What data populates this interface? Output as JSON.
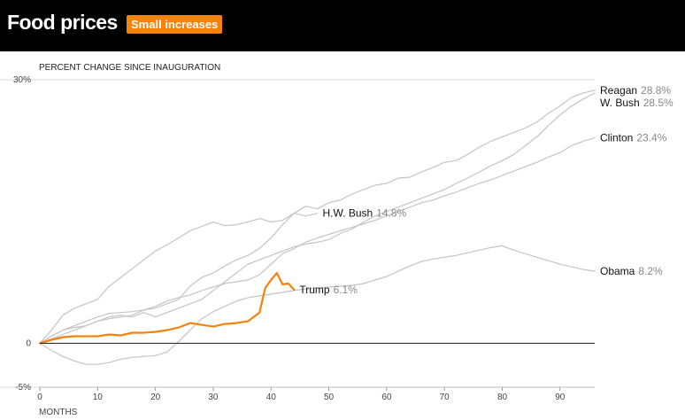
{
  "header": {
    "title": "Food prices",
    "badge": "Small increases"
  },
  "colors": {
    "header_bg": "#000000",
    "accent": "#f5820b",
    "past_series": "#c4c4c4",
    "grid": "#dddddd"
  },
  "chart_data": {
    "type": "line",
    "ylabel": "PERCENT CHANGE SINCE INAUGURATION",
    "xlabel": "MONTHS",
    "xlim": [
      0,
      96
    ],
    "ylim": [
      -5,
      30
    ],
    "xticks": [
      0,
      10,
      20,
      30,
      40,
      50,
      60,
      70,
      80,
      90
    ],
    "yticks": [
      {
        "value": 30,
        "label": "30%"
      },
      {
        "value": 0,
        "label": "0"
      },
      {
        "value": -5,
        "label": "-5%"
      }
    ],
    "series": [
      {
        "name": "Reagan",
        "label_value": "28.8%",
        "highlight": false,
        "x": [
          0,
          2,
          4,
          6,
          8,
          10,
          12,
          14,
          16,
          18,
          20,
          22,
          24,
          26,
          28,
          30,
          32,
          34,
          36,
          38,
          40,
          42,
          44,
          46,
          48,
          50,
          52,
          54,
          56,
          58,
          60,
          62,
          64,
          66,
          68,
          70,
          72,
          74,
          76,
          78,
          80,
          82,
          84,
          86,
          88,
          90,
          92,
          94,
          96
        ],
        "y": [
          0,
          1.5,
          3.2,
          4.0,
          4.5,
          5.0,
          6.5,
          7.5,
          8.5,
          9.5,
          10.5,
          11.2,
          12.0,
          12.8,
          13.3,
          13.8,
          13.4,
          13.5,
          13.8,
          14.2,
          13.8,
          14.0,
          14.8,
          15.6,
          15.3,
          16.0,
          16.3,
          17.0,
          17.5,
          18.0,
          18.2,
          18.8,
          18.9,
          19.5,
          20.0,
          20.6,
          20.8,
          21.5,
          22.3,
          23.0,
          23.5,
          24.0,
          24.5,
          25.2,
          26.2,
          27.0,
          28.0,
          28.5,
          28.8
        ]
      },
      {
        "name": "W. Bush",
        "label_value": "28.5%",
        "highlight": false,
        "x": [
          0,
          2,
          4,
          6,
          8,
          10,
          12,
          14,
          16,
          18,
          20,
          22,
          24,
          26,
          28,
          30,
          32,
          34,
          36,
          38,
          40,
          42,
          44,
          46,
          48,
          50,
          52,
          54,
          56,
          58,
          60,
          62,
          64,
          66,
          68,
          70,
          72,
          74,
          76,
          78,
          80,
          82,
          84,
          86,
          88,
          90,
          92,
          94,
          96
        ],
        "y": [
          0,
          0.5,
          1.0,
          1.5,
          2.0,
          2.5,
          3.0,
          3.2,
          3.0,
          3.5,
          3.0,
          3.5,
          4.0,
          4.5,
          5.0,
          6.0,
          7.0,
          8.0,
          9.0,
          9.5,
          10.0,
          10.5,
          11.0,
          11.3,
          11.5,
          11.8,
          12.5,
          13.0,
          13.8,
          14.5,
          15.0,
          15.5,
          16.0,
          16.5,
          17.0,
          17.5,
          18.2,
          18.8,
          19.5,
          20.2,
          20.8,
          21.5,
          22.5,
          23.5,
          24.8,
          26.0,
          27.0,
          27.8,
          28.5
        ]
      },
      {
        "name": "Clinton",
        "label_value": "23.4%",
        "highlight": false,
        "x": [
          0,
          2,
          4,
          6,
          8,
          10,
          12,
          14,
          16,
          18,
          20,
          22,
          24,
          26,
          28,
          30,
          32,
          34,
          36,
          38,
          40,
          42,
          44,
          46,
          48,
          50,
          52,
          54,
          56,
          58,
          60,
          62,
          64,
          66,
          68,
          70,
          72,
          74,
          76,
          78,
          80,
          82,
          84,
          86,
          88,
          90,
          92,
          94,
          96
        ],
        "y": [
          0,
          0.8,
          1.5,
          1.8,
          2.0,
          2.5,
          2.8,
          3.0,
          3.2,
          3.8,
          4.2,
          4.8,
          5.2,
          5.5,
          6.0,
          6.4,
          6.8,
          7.0,
          7.2,
          7.8,
          9.0,
          10.2,
          10.8,
          11.5,
          12.0,
          12.4,
          12.8,
          13.2,
          13.6,
          14.0,
          14.5,
          15.0,
          15.5,
          16.0,
          16.3,
          16.8,
          17.2,
          17.7,
          18.2,
          18.6,
          19.1,
          19.6,
          20.1,
          20.6,
          21.2,
          21.7,
          22.5,
          23.0,
          23.4
        ]
      },
      {
        "name": "H.W. Bush",
        "label_value": "14.8%",
        "highlight": false,
        "x": [
          0,
          2,
          4,
          6,
          8,
          10,
          12,
          14,
          16,
          18,
          20,
          22,
          24,
          26,
          28,
          30,
          32,
          34,
          36,
          38,
          40,
          42,
          44,
          46,
          48
        ],
        "y": [
          0,
          0.8,
          1.5,
          2.0,
          2.5,
          3.0,
          3.4,
          3.5,
          3.6,
          3.8,
          4.0,
          4.5,
          5.0,
          6.5,
          7.5,
          8.0,
          8.8,
          9.5,
          10.0,
          10.8,
          12.0,
          13.5,
          14.8,
          14.5,
          14.8
        ]
      },
      {
        "name": "Obama",
        "label_value": "8.2%",
        "highlight": false,
        "x": [
          0,
          2,
          4,
          6,
          8,
          10,
          12,
          14,
          16,
          18,
          20,
          22,
          24,
          26,
          28,
          30,
          32,
          34,
          36,
          38,
          40,
          42,
          44,
          46,
          48,
          50,
          52,
          54,
          56,
          58,
          60,
          62,
          64,
          66,
          68,
          70,
          72,
          74,
          76,
          78,
          80,
          82,
          84,
          86,
          88,
          90,
          92,
          94,
          96
        ],
        "y": [
          0,
          -0.8,
          -1.5,
          -2.0,
          -2.4,
          -2.4,
          -2.2,
          -1.8,
          -1.6,
          -1.5,
          -1.4,
          -1.0,
          0.2,
          1.5,
          2.8,
          3.6,
          4.2,
          4.8,
          5.2,
          5.4,
          5.6,
          5.8,
          6.0,
          6.2,
          6.3,
          6.4,
          6.5,
          6.6,
          6.8,
          7.2,
          7.6,
          8.2,
          8.8,
          9.3,
          9.6,
          9.8,
          10.0,
          10.3,
          10.6,
          10.9,
          11.1,
          10.6,
          10.2,
          9.8,
          9.4,
          9.0,
          8.7,
          8.4,
          8.2
        ]
      },
      {
        "name": "Trump",
        "label_value": "6.1%",
        "highlight": true,
        "x": [
          0,
          2,
          4,
          6,
          8,
          10,
          12,
          14,
          16,
          18,
          20,
          22,
          24,
          26,
          28,
          30,
          32,
          34,
          36,
          38,
          39,
          40,
          41,
          42,
          43,
          44
        ],
        "y": [
          0,
          0.4,
          0.7,
          0.8,
          0.8,
          0.8,
          1.0,
          0.9,
          1.2,
          1.2,
          1.3,
          1.5,
          1.8,
          2.3,
          2.1,
          1.9,
          2.2,
          2.3,
          2.5,
          3.5,
          6.3,
          7.2,
          8.0,
          6.7,
          6.8,
          6.1
        ]
      }
    ]
  }
}
